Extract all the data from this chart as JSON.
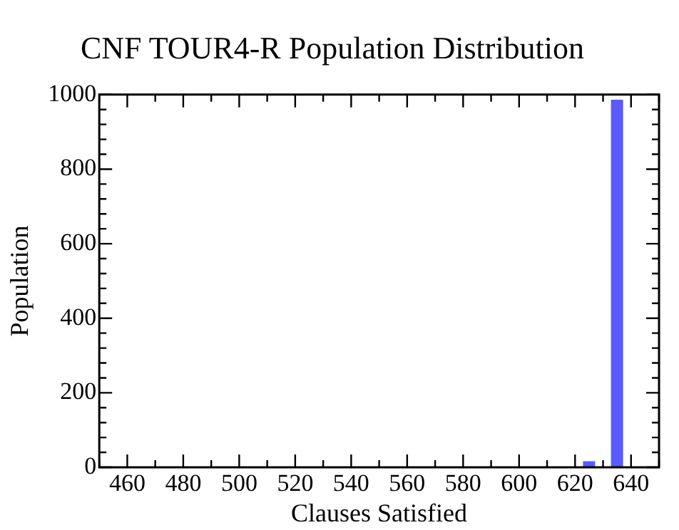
{
  "chart_data": {
    "type": "histogram",
    "title": "CNF TOUR4-R Population Distribution",
    "xlabel": "Clauses Satisfied",
    "ylabel": "Population",
    "bins": [
      623,
      625,
      627,
      629,
      631,
      633,
      635,
      637
    ],
    "values": [
      15,
      15,
      0,
      0,
      0,
      985,
      985
    ],
    "color": "#5a5aff",
    "xlim": [
      450,
      650
    ],
    "xticks": [
      {
        "value": 450,
        "label": null
      },
      460,
      {
        "value": 470,
        "label": null
      },
      480,
      {
        "value": 490,
        "label": null
      },
      500,
      {
        "value": 510,
        "label": null
      },
      520,
      {
        "value": 530,
        "label": null
      },
      540,
      {
        "value": 550,
        "label": null
      },
      560,
      {
        "value": 570,
        "label": null
      },
      580,
      {
        "value": 590,
        "label": null
      },
      600,
      {
        "value": 610,
        "label": null
      },
      620,
      {
        "value": 630,
        "label": null
      },
      640,
      {
        "value": 650,
        "label": null
      }
    ],
    "ylim": [
      0,
      1000
    ],
    "yticks": [
      0,
      {
        "value": 40,
        "label": null
      },
      {
        "value": 80,
        "label": null
      },
      {
        "value": 120,
        "label": null
      },
      {
        "value": 160,
        "label": null
      },
      200,
      {
        "value": 240,
        "label": null
      },
      {
        "value": 280,
        "label": null
      },
      {
        "value": 320,
        "label": null
      },
      {
        "value": 360,
        "label": null
      },
      400,
      {
        "value": 440,
        "label": null
      },
      {
        "value": 480,
        "label": null
      },
      {
        "value": 520,
        "label": null
      },
      {
        "value": 560,
        "label": null
      },
      600,
      {
        "value": 640,
        "label": null
      },
      {
        "value": 680,
        "label": null
      },
      {
        "value": 720,
        "label": null
      },
      {
        "value": 760,
        "label": null
      },
      800,
      {
        "value": 840,
        "label": null
      },
      {
        "value": 880,
        "label": null
      },
      {
        "value": 920,
        "label": null
      },
      {
        "value": 960,
        "label": null
      },
      1000
    ],
    "grid": false,
    "legend": false
  }
}
